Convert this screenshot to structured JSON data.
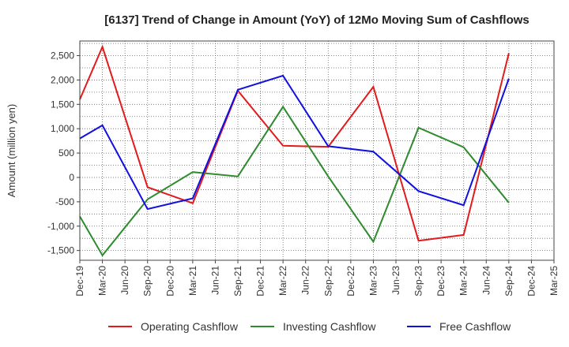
{
  "chart_data": {
    "type": "line",
    "title": "[6137]  Trend of Change in Amount (YoY) of 12Mo Moving Sum of Cashflows",
    "xlabel": "",
    "ylabel": "Amount (million yen)",
    "ylim": [
      -1700,
      2800
    ],
    "yticks": [
      -1500,
      -1000,
      -500,
      0,
      500,
      1000,
      1500,
      2000,
      2500
    ],
    "ytick_labels": [
      "-1,500",
      "-1,000",
      "-500",
      "0",
      "500",
      "1,000",
      "1,500",
      "2,000",
      "2,500"
    ],
    "categories": [
      "Dec-19",
      "Mar-20",
      "Jun-20",
      "Sep-20",
      "Dec-20",
      "Mar-21",
      "Jun-21",
      "Sep-21",
      "Dec-21",
      "Mar-22",
      "Jun-22",
      "Sep-22",
      "Dec-22",
      "Mar-23",
      "Jun-23",
      "Sep-23",
      "Dec-23",
      "Mar-24",
      "Jun-24",
      "Sep-24",
      "Dec-24",
      "Mar-25"
    ],
    "grid": true,
    "legend_position": "bottom",
    "series": [
      {
        "name": "Operating Cashflow",
        "color": "#e31a1c",
        "values": [
          1600,
          2680,
          null,
          -200,
          null,
          -530,
          null,
          1780,
          null,
          650,
          null,
          630,
          null,
          1860,
          null,
          -1300,
          null,
          -1180,
          null,
          2550,
          null,
          null
        ]
      },
      {
        "name": "Investing Cashflow",
        "color": "#2e8b2e",
        "values": [
          -800,
          -1600,
          null,
          -450,
          null,
          110,
          null,
          20,
          null,
          1450,
          null,
          20,
          null,
          -1320,
          null,
          1020,
          null,
          620,
          null,
          -520,
          null,
          null
        ]
      },
      {
        "name": "Free Cashflow",
        "color": "#1010e0",
        "values": [
          800,
          1070,
          null,
          -650,
          null,
          -430,
          null,
          1800,
          null,
          2090,
          null,
          640,
          null,
          530,
          null,
          -280,
          null,
          -570,
          null,
          2030,
          null,
          null
        ]
      }
    ]
  }
}
